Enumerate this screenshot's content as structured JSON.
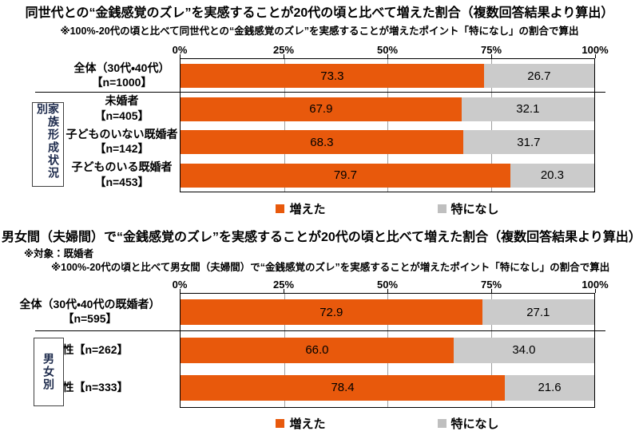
{
  "colors": {
    "increased": "#e8590c",
    "none": "#cbcbcb",
    "gridline": "#9e9e9e",
    "plot_border": "#000000",
    "group_label_text": "#1e2b4c"
  },
  "chart_data": [
    {
      "type": "bar",
      "orientation": "horizontal",
      "stacked": true,
      "title": "同世代との“金銭感覚のズレ”を実感することが20代の頃と比べて増えた割合（複数回答結果より算出）",
      "notes": [
        "※100%-20代の頃と比べて同世代との“金銭感覚のズレ”を実感することが増えたポイント「特になし」の割合で算出"
      ],
      "x_axis": {
        "ticks": [
          "0%",
          "25%",
          "50%",
          "75%",
          "100%"
        ],
        "tick_positions": [
          0,
          25,
          50,
          75,
          100
        ],
        "range": [
          0,
          100
        ],
        "grid": true
      },
      "series": [
        {
          "name": "増えた",
          "color": "#e8590c"
        },
        {
          "name": "特になし",
          "color": "#cbcbcb"
        }
      ],
      "group_label": "家族形成状況別",
      "rows": [
        {
          "label_lines": [
            "全体（30代・40代）",
            "【n=1000】"
          ],
          "in_group": false,
          "increased": 73.3,
          "none": 26.7
        },
        {
          "label_lines": [
            "未婚者",
            "【n=405】"
          ],
          "in_group": true,
          "increased": 67.9,
          "none": 32.1
        },
        {
          "label_lines": [
            "子どものいない既婚者",
            "【n=142】"
          ],
          "in_group": true,
          "increased": 68.3,
          "none": 31.7
        },
        {
          "label_lines": [
            "子どものいる既婚者",
            "【n=453】"
          ],
          "in_group": true,
          "increased": 79.7,
          "none": 20.3
        }
      ]
    },
    {
      "type": "bar",
      "orientation": "horizontal",
      "stacked": true,
      "title": "男女間（夫婦間）で“金銭感覚のズレ”を実感することが20代の頃と比べて増えた割合（複数回答結果より算出）",
      "notes": [
        "※対象：既婚者",
        "※100%-20代の頃と比べて男女間（夫婦間）で“金銭感覚のズレ”を実感することが増えたポイント「特になし」の割合で算出"
      ],
      "x_axis": {
        "ticks": [
          "0%",
          "25%",
          "50%",
          "75%",
          "100%"
        ],
        "tick_positions": [
          0,
          25,
          50,
          75,
          100
        ],
        "range": [
          0,
          100
        ],
        "grid": true
      },
      "series": [
        {
          "name": "増えた",
          "color": "#e8590c"
        },
        {
          "name": "特になし",
          "color": "#cbcbcb"
        }
      ],
      "group_label": "男女別",
      "rows": [
        {
          "label_lines": [
            "全体（30代・40代の既婚者）",
            "【n=595】"
          ],
          "in_group": false,
          "increased": 72.9,
          "none": 27.1
        },
        {
          "label_lines": [
            "男性【n=262】"
          ],
          "in_group": true,
          "increased": 66.0,
          "none": 34.0
        },
        {
          "label_lines": [
            "女性【n=333】"
          ],
          "in_group": true,
          "increased": 78.4,
          "none": 21.6
        }
      ]
    }
  ]
}
